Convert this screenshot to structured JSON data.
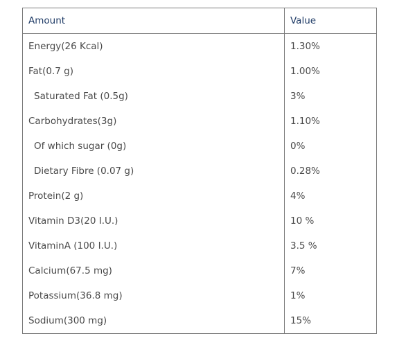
{
  "table": {
    "headers": {
      "amount": "Amount",
      "value": "Value"
    },
    "rows": [
      {
        "amount": "Energy(26 Kcal)",
        "value": "1.30%",
        "indent": false
      },
      {
        "amount": "Fat(0.7 g)",
        "value": "1.00%",
        "indent": false
      },
      {
        "amount": "Saturated Fat (0.5g)",
        "value": "3%",
        "indent": true
      },
      {
        "amount": "Carbohydrates(3g)",
        "value": "1.10%",
        "indent": false
      },
      {
        "amount": "Of which sugar (0g)",
        "value": "0%",
        "indent": true
      },
      {
        "amount": "Dietary Fibre (0.07 g)",
        "value": "0.28%",
        "indent": true
      },
      {
        "amount": "Protein(2 g)",
        "value": "4%",
        "indent": false
      },
      {
        "amount": "Vitamin D3(20 I.U.)",
        "value": "10 %",
        "indent": false
      },
      {
        "amount": "VitaminA (100 I.U.)",
        "value": "3.5 %",
        "indent": false
      },
      {
        "amount": "Calcium(67.5 mg)",
        "value": "7%",
        "indent": false
      },
      {
        "amount": "Potassium(36.8 mg)",
        "value": "1%",
        "indent": false
      },
      {
        "amount": "Sodium(300 mg)",
        "value": "15%",
        "indent": false
      }
    ]
  },
  "colors": {
    "header_text": "#1f3b66",
    "body_text": "#4a4a4a",
    "border": "#7a7a7a",
    "background": "#ffffff"
  }
}
